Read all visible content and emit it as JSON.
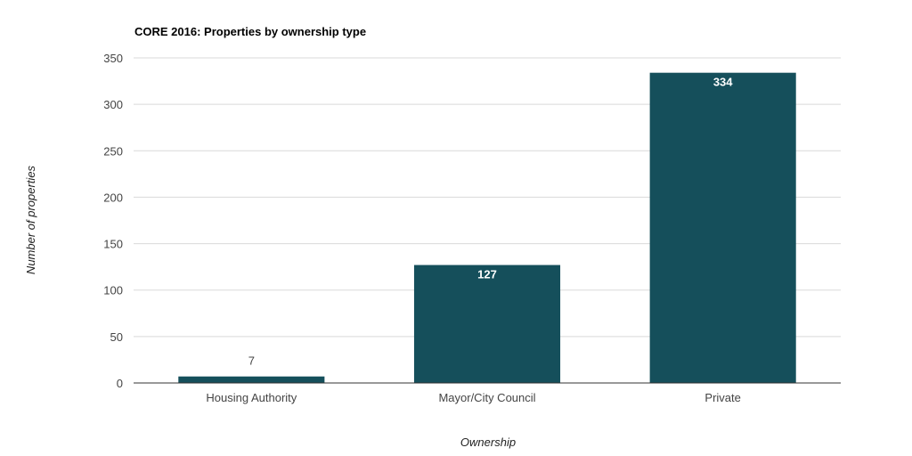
{
  "chart_data": {
    "type": "bar",
    "title": "CORE 2016: Properties by ownership type",
    "xlabel": "Ownership",
    "ylabel": "Number of properties",
    "categories": [
      "Housing Authority",
      "Mayor/City Council",
      "Private"
    ],
    "values": [
      7,
      127,
      334
    ],
    "ylim": [
      0,
      350
    ],
    "yticks": [
      0,
      50,
      100,
      150,
      200,
      250,
      300,
      350
    ],
    "grid": true,
    "legend": "none",
    "bar_color": "#154f5b"
  }
}
